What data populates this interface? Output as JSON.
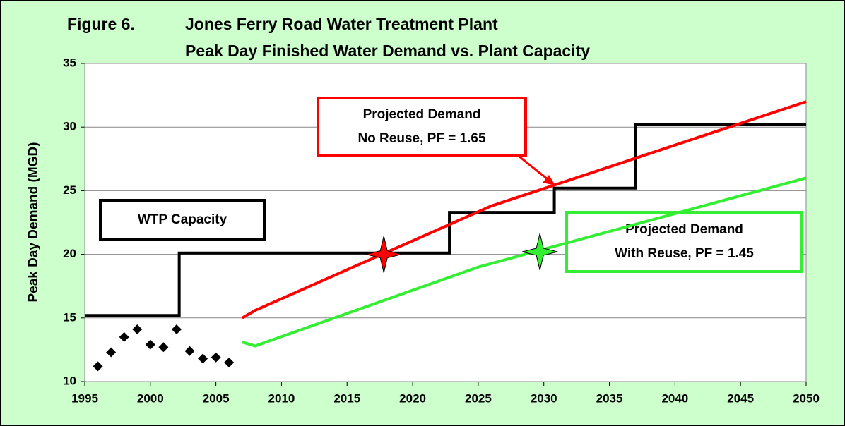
{
  "chart_data": {
    "type": "line",
    "title": [
      "Figure 6.",
      "Jones Ferry Road Water Treatment Plant",
      "Peak Day Finished Water Demand vs. Plant Capacity"
    ],
    "y_label": "Peak Day Demand (MGD)",
    "xlim": [
      1995,
      2050
    ],
    "xticks": [
      1995,
      2000,
      2005,
      2010,
      2015,
      2020,
      2025,
      2030,
      2035,
      2040,
      2045,
      2050
    ],
    "ylim": [
      10,
      35
    ],
    "yticks": [
      10,
      15,
      20,
      25,
      30,
      35
    ],
    "grid": true,
    "series": [
      {
        "type": "scatter",
        "marker": "diamond",
        "color": "#000000",
        "x": [
          1996,
          1997,
          1998,
          1999,
          2000,
          2001,
          2002,
          2003,
          2004,
          2005,
          2006
        ],
        "values": [
          11.2,
          12.3,
          13.5,
          14.1,
          12.9,
          12.7,
          14.1,
          12.4,
          11.8,
          11.9,
          11.5
        ]
      },
      {
        "type": "line",
        "color": "#000000",
        "x": [
          1995,
          2002.2,
          2002.2,
          2022.8,
          2022.8,
          2030.8,
          2030.8,
          2037,
          2037,
          2050
        ],
        "values": [
          15.2,
          15.2,
          20.1,
          20.1,
          23.3,
          23.3,
          25.2,
          25.2,
          30.2,
          30.2
        ]
      },
      {
        "type": "line",
        "color": "#ff0000",
        "x": [
          2007,
          2008,
          2026,
          2050
        ],
        "values": [
          15,
          15.6,
          23.8,
          32
        ]
      },
      {
        "type": "line",
        "color": "#33ee33",
        "x": [
          2007,
          2008,
          2025,
          2050
        ],
        "values": [
          13.1,
          12.8,
          19,
          26
        ]
      },
      {
        "type": "scatter",
        "marker": "star",
        "color": "#ff0000",
        "x": [
          2017.8
        ],
        "values": [
          20
        ]
      },
      {
        "type": "scatter",
        "marker": "star",
        "color": "#33ee33",
        "x": [
          2029.7
        ],
        "values": [
          20.2
        ]
      }
    ],
    "annotations": [
      {
        "lines": [
          "WTP Capacity"
        ],
        "color": "#000000"
      },
      {
        "lines": [
          "Projected Demand",
          "No Reuse, PF = 1.65"
        ],
        "color": "#ff0000"
      },
      {
        "lines": [
          "Projected Demand",
          "With Reuse, PF = 1.45"
        ],
        "color": "#33ee33"
      }
    ]
  }
}
